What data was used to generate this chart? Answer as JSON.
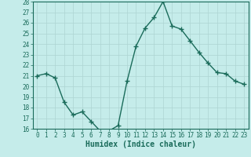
{
  "x": [
    0,
    1,
    2,
    3,
    4,
    5,
    6,
    7,
    8,
    9,
    10,
    11,
    12,
    13,
    14,
    15,
    16,
    17,
    18,
    19,
    20,
    21,
    22,
    23
  ],
  "y": [
    21.0,
    21.2,
    20.8,
    18.5,
    17.3,
    17.6,
    16.7,
    15.8,
    15.8,
    16.3,
    20.5,
    23.8,
    25.5,
    26.5,
    28.0,
    25.7,
    25.4,
    24.3,
    23.2,
    22.2,
    21.3,
    21.2,
    20.5,
    20.2
  ],
  "line_color": "#1a6b5a",
  "marker": "+",
  "marker_size": 4,
  "marker_lw": 1.0,
  "line_width": 1.0,
  "bg_color": "#c5ecea",
  "grid_color": "#aed4d2",
  "xlabel": "Humidex (Indice chaleur)",
  "ylim": [
    16,
    28
  ],
  "xlim": [
    -0.5,
    23.5
  ],
  "yticks": [
    16,
    17,
    18,
    19,
    20,
    21,
    22,
    23,
    24,
    25,
    26,
    27,
    28
  ],
  "xticks": [
    0,
    1,
    2,
    3,
    4,
    5,
    6,
    7,
    8,
    9,
    10,
    11,
    12,
    13,
    14,
    15,
    16,
    17,
    18,
    19,
    20,
    21,
    22,
    23
  ],
  "tick_color": "#1a6b5a",
  "tick_fontsize": 5.5,
  "xlabel_fontsize": 7.0,
  "spine_color": "#1a6b5a"
}
